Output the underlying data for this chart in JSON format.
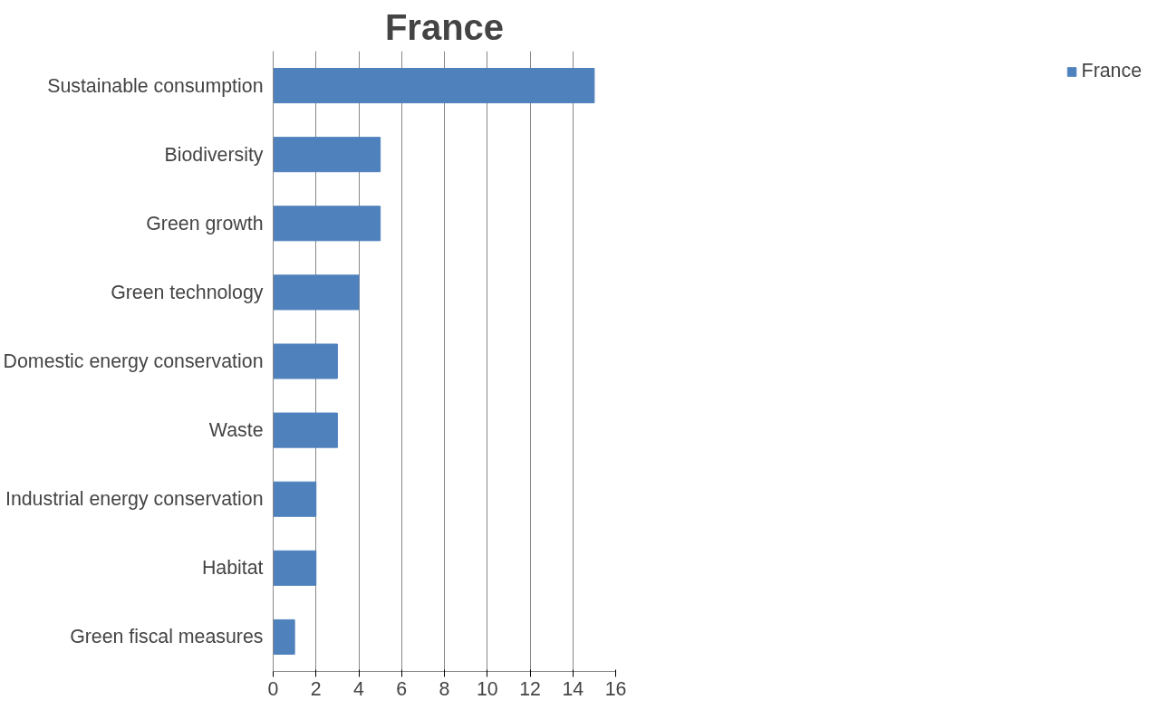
{
  "chart_data": {
    "type": "bar",
    "title": "France",
    "orientation": "horizontal",
    "categories": [
      "Sustainable consumption",
      "Biodiversity",
      "Green growth",
      "Green technology",
      "Domestic energy conservation",
      "Waste",
      "Industrial energy conservation",
      "Habitat",
      "Green fiscal measures"
    ],
    "series": [
      {
        "name": "France",
        "color": "#4f81bd",
        "values": [
          15,
          5,
          5,
          4,
          3,
          3,
          2,
          2,
          1
        ]
      }
    ],
    "xlim": [
      0,
      16
    ],
    "xticks": [
      0,
      2,
      4,
      6,
      8,
      10,
      12,
      14,
      16
    ],
    "grid": "x",
    "legend": "right"
  }
}
